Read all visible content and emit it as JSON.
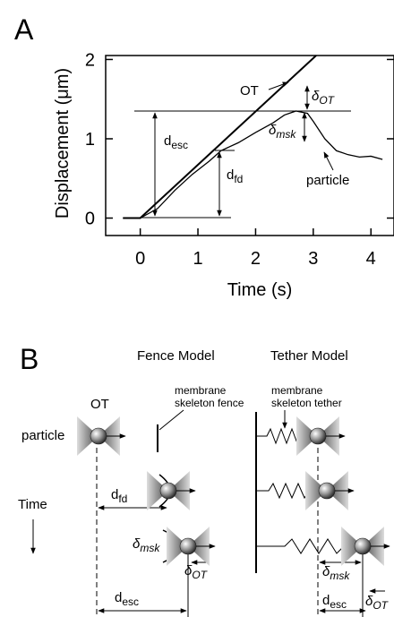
{
  "chart_data": {
    "type": "line",
    "panel": "A",
    "xlabel": "Time (s)",
    "ylabel": "Displacement (μm)",
    "xlim": [
      -0.6,
      4.4
    ],
    "xticks": [
      0,
      1,
      2,
      3,
      4
    ],
    "ylim": [
      -0.22,
      2.05
    ],
    "yticks": [
      0,
      1,
      2
    ],
    "series": [
      {
        "name": "OT",
        "color": "#000000",
        "x": [
          -0.3,
          0,
          3.05
        ],
        "values": [
          0,
          0,
          2.05
        ]
      },
      {
        "name": "particle",
        "color": "#000000",
        "x": [
          -0.3,
          0,
          0.3,
          0.6,
          0.9,
          1.2,
          1.4,
          1.7,
          2.0,
          2.3,
          2.5,
          2.7,
          2.9,
          3.0,
          3.2,
          3.4,
          3.6,
          3.8,
          4.0,
          4.2
        ],
        "values": [
          0,
          0,
          0.12,
          0.35,
          0.55,
          0.72,
          0.85,
          0.95,
          1.08,
          1.2,
          1.3,
          1.35,
          1.32,
          1.22,
          1.0,
          0.85,
          0.8,
          0.77,
          0.78,
          0.74
        ]
      }
    ],
    "annotations": [
      {
        "text": "d",
        "sub": "esc"
      },
      {
        "text": "d",
        "sub": "fd"
      },
      {
        "text": "δ",
        "sub": "msk"
      },
      {
        "text": "δ",
        "sub": "OT"
      }
    ]
  },
  "diagram": {
    "panel": "B",
    "time": "Time",
    "fence": {
      "title": "Fence Model",
      "ot": "OT",
      "particle": "particle",
      "label": [
        "membrane",
        "skeleton fence"
      ],
      "d_fd": {
        "text": "d",
        "sub": "fd"
      },
      "d_msk": {
        "text": "δ",
        "sub": "msk"
      },
      "d_ot": {
        "text": "δ",
        "sub": "OT"
      },
      "d_esc": {
        "text": "d",
        "sub": "esc"
      }
    },
    "tether": {
      "title": "Tether Model",
      "label": [
        "membrane",
        "skeleton tether"
      ],
      "d_msk": {
        "text": "δ",
        "sub": "msk"
      },
      "d_esc": {
        "text": "d",
        "sub": "esc"
      },
      "d_ot": {
        "text": "δ",
        "sub": "OT"
      }
    }
  }
}
